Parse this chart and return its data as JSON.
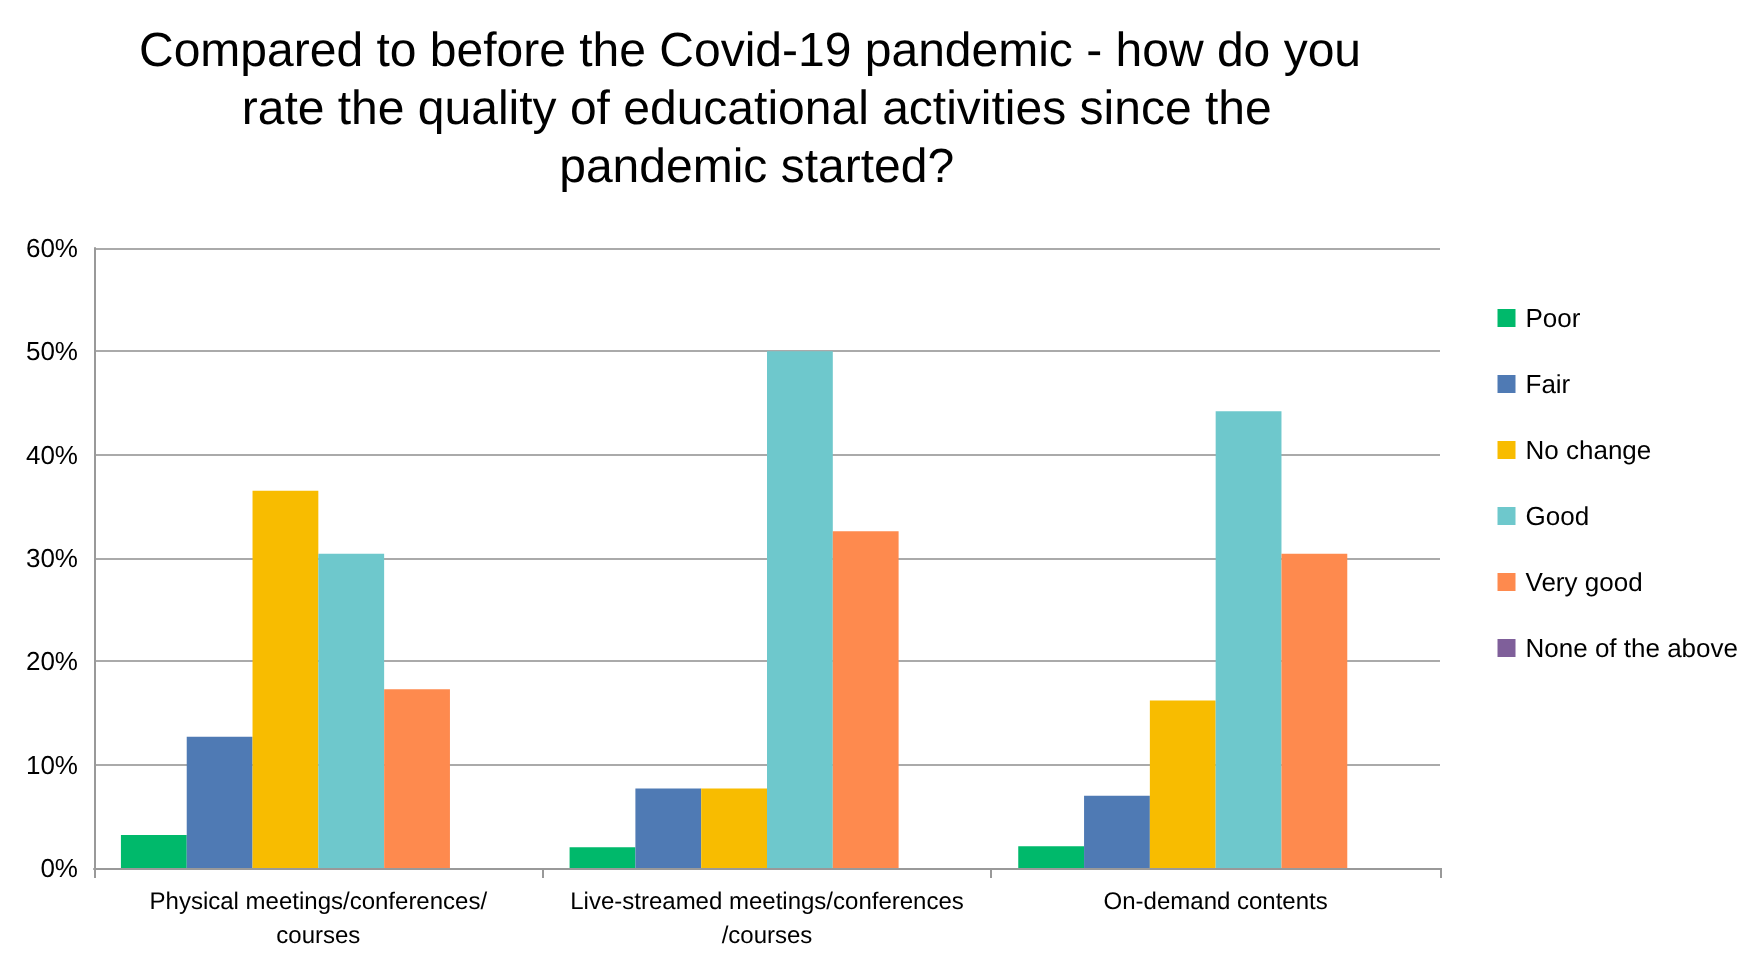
{
  "chart_data": {
    "type": "bar",
    "title": "Compared to before the Covid-19 pandemic - how do you rate the quality of educational activities since the pandemic started?",
    "categories": [
      "Physical meetings/conferences/courses",
      "Live-streamed meetings/conferences/courses",
      "On-demand contents"
    ],
    "series": [
      {
        "name": "Poor",
        "color": "#00b96b",
        "values": [
          3.2,
          2.0,
          2.1
        ]
      },
      {
        "name": "Fair",
        "color": "#4f7ab4",
        "values": [
          12.7,
          7.7,
          7.0
        ]
      },
      {
        "name": "No change",
        "color": "#f8bc00",
        "values": [
          36.5,
          7.7,
          16.2
        ]
      },
      {
        "name": "Good",
        "color": "#6ec8cc",
        "values": [
          30.4,
          50.0,
          44.2
        ]
      },
      {
        "name": "Very good",
        "color": "#fe8a4e",
        "values": [
          17.3,
          32.6,
          30.4
        ]
      },
      {
        "name": "None of the above",
        "color": "#7f5f9a",
        "values": [
          0,
          0,
          0
        ]
      }
    ],
    "ylim": [
      0,
      60
    ],
    "yticks": [
      {
        "value": 0,
        "label": "0%"
      },
      {
        "value": 10,
        "label": "10%"
      },
      {
        "value": 20,
        "label": "20%"
      },
      {
        "value": 30,
        "label": "30%"
      },
      {
        "value": 40,
        "label": "40%"
      },
      {
        "value": 50,
        "label": "50%"
      },
      {
        "value": 60,
        "label": "60%"
      }
    ],
    "grid": "y",
    "legend": "right"
  }
}
